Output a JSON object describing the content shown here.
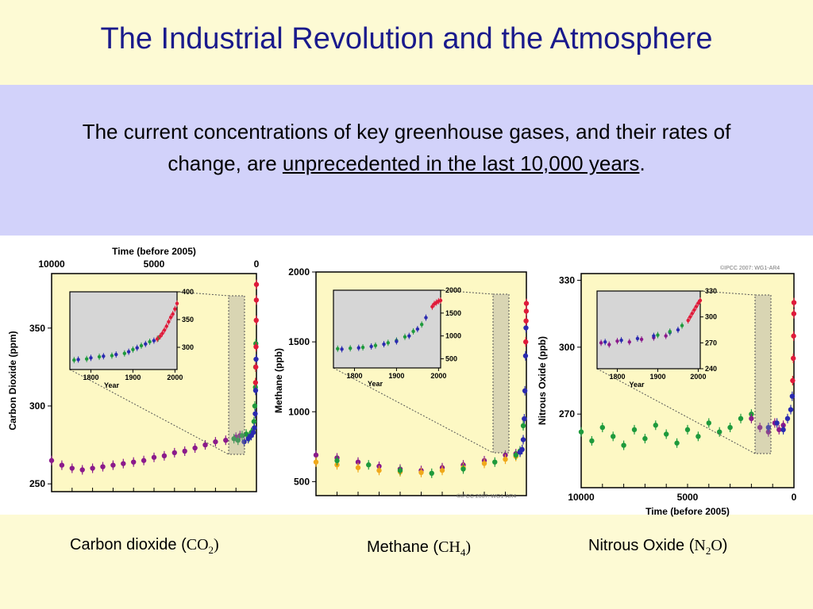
{
  "slide": {
    "title": "The Industrial Revolution and the Atmosphere",
    "subtitle_part1": "The current concentrations of key greenhouse gases, and their rates of change, are ",
    "subtitle_underlined": "unprecedented in the last 10,000 years",
    "subtitle_end": ".",
    "credit": "©IPCC 2007: WG1-AR4",
    "credit_partial": "©IPCC 2007: WG1-AR4"
  },
  "captions": [
    {
      "text": "Carbon dioxide (",
      "formula": "CO",
      "sub": "2",
      "close": ")"
    },
    {
      "text": "Methane (",
      "formula": "CH",
      "sub": "4",
      "close": ")"
    },
    {
      "text": "Nitrous Oxide (",
      "formula": "N",
      "sub": "2",
      "formula_tail": "O",
      "close": ")"
    }
  ],
  "colors": {
    "title": "#1a1a8c",
    "band": "#d2d2fa",
    "plot_bg": "#fdf8c4",
    "inset_bg": "#d6d6d6",
    "purple": "#8b1a8b",
    "green": "#1e9a3c",
    "blue": "#2a2ab0",
    "red": "#e01a3a",
    "orange": "#f0a81a"
  },
  "chart_data": [
    {
      "type": "scatter",
      "title": "",
      "xlabel": "Time (before 2005)",
      "ylabel": "Carbon Dioxide (ppm)",
      "xlim": [
        10000,
        0
      ],
      "ylim": [
        245,
        385
      ],
      "xticks": [
        "10000",
        "5000",
        "0"
      ],
      "yticks": [
        "250",
        "300",
        "350"
      ],
      "series": [
        {
          "color": "purple",
          "x": [
            10000,
            9500,
            9000,
            8500,
            8000,
            7500,
            7000,
            6500,
            6000,
            5500,
            5000,
            4500,
            4000,
            3500,
            3000,
            2500,
            2000,
            1500,
            1000,
            800
          ],
          "y": [
            265,
            262,
            260,
            259,
            260,
            261,
            262,
            263,
            264,
            265,
            267,
            268,
            270,
            271,
            273,
            275,
            277,
            278,
            280,
            281
          ]
        },
        {
          "color": "green",
          "x": [
            1100,
            900,
            700,
            500,
            350,
            250,
            180,
            120,
            80,
            50,
            40,
            30
          ],
          "y": [
            279,
            278,
            281,
            282,
            280,
            283,
            284,
            290,
            300,
            312,
            325,
            340
          ]
        },
        {
          "color": "blue",
          "x": [
            600,
            400,
            250,
            150,
            100,
            60,
            40,
            20
          ],
          "y": [
            277,
            279,
            281,
            283,
            286,
            295,
            310,
            330
          ]
        },
        {
          "color": "red",
          "x": [
            45,
            30,
            20,
            10,
            5,
            0
          ],
          "y": [
            315,
            325,
            338,
            355,
            368,
            378
          ]
        }
      ],
      "inset": {
        "xlabel": "Year",
        "xlim": [
          1750,
          2005
        ],
        "ylim": [
          260,
          400
        ],
        "xticks": [
          "1800",
          "1900",
          "2000"
        ],
        "yticks": [
          "300",
          "350",
          "400"
        ],
        "series": [
          {
            "color": "green",
            "x": [
              1760,
              1790,
              1820,
              1850,
              1880,
              1900,
              1920,
              1940,
              1960
            ],
            "y": [
              277,
              279,
              283,
              285,
              289,
              296,
              303,
              310,
              316
            ]
          },
          {
            "color": "blue",
            "x": [
              1770,
              1800,
              1830,
              1860,
              1890,
              1910,
              1930,
              1950
            ],
            "y": [
              278,
              281,
              284,
              287,
              292,
              299,
              306,
              312
            ]
          },
          {
            "color": "red",
            "x": [
              1958,
              1965,
              1970,
              1975,
              1980,
              1985,
              1990,
              1995,
              2000,
              2005
            ],
            "y": [
              315,
              320,
              325,
              331,
              338,
              346,
              354,
              360,
              369,
              379
            ]
          }
        ]
      }
    },
    {
      "type": "scatter",
      "title": "",
      "xlabel": "",
      "ylabel": "Methane (ppb)",
      "xlim": [
        10000,
        0
      ],
      "ylim": [
        400,
        2000
      ],
      "yticks": [
        "500",
        "1000",
        "1500",
        "2000"
      ],
      "series": [
        {
          "color": "purple",
          "x": [
            10000,
            9000,
            8000,
            7000,
            6000,
            5000,
            4000,
            3000,
            2000,
            1000,
            500
          ],
          "y": [
            690,
            670,
            640,
            610,
            590,
            580,
            600,
            620,
            650,
            690,
            700
          ]
        },
        {
          "color": "orange",
          "x": [
            10000,
            9000,
            8000,
            7000,
            6000,
            5000,
            4000,
            3000,
            2000,
            1000,
            500
          ],
          "y": [
            640,
            620,
            600,
            580,
            570,
            565,
            580,
            600,
            630,
            660,
            680
          ]
        },
        {
          "color": "green",
          "x": [
            9000,
            7500,
            6000,
            4500,
            3000,
            1500,
            500,
            300,
            150
          ],
          "y": [
            650,
            620,
            580,
            560,
            590,
            640,
            690,
            720,
            900
          ]
        },
        {
          "color": "blue",
          "x": [
            300,
            200,
            150,
            100,
            70,
            40,
            20
          ],
          "y": [
            710,
            730,
            800,
            950,
            1150,
            1400,
            1600
          ]
        },
        {
          "color": "red",
          "x": [
            30,
            15,
            5,
            0
          ],
          "y": [
            1500,
            1650,
            1720,
            1775
          ]
        }
      ],
      "inset": {
        "xlabel": "Year",
        "xlim": [
          1750,
          2005
        ],
        "ylim": [
          300,
          2000
        ],
        "xticks": [
          "1800",
          "1900",
          "2000"
        ],
        "yticks": [
          "500",
          "1000",
          "1500",
          "2000"
        ],
        "series": [
          {
            "color": "green",
            "x": [
              1760,
              1790,
              1820,
              1850,
              1880,
              1900,
              1920,
              1940,
              1960
            ],
            "y": [
              720,
              730,
              750,
              790,
              850,
              900,
              980,
              1100,
              1250
            ]
          },
          {
            "color": "blue",
            "x": [
              1770,
              1810,
              1840,
              1870,
              1900,
              1930,
              1950,
              1970
            ],
            "y": [
              710,
              740,
              770,
              820,
              880,
              1000,
              1150,
              1400
            ]
          },
          {
            "color": "red",
            "x": [
              1985,
              1990,
              1995,
              2000,
              2005
            ],
            "y": [
              1640,
              1700,
              1730,
              1760,
              1775
            ]
          }
        ]
      }
    },
    {
      "type": "scatter",
      "title": "",
      "xlabel": "Time (before 2005)",
      "ylabel": "Nitrous Oxide (ppb)",
      "xlim": [
        10000,
        0
      ],
      "ylim": [
        237,
        333
      ],
      "xticks": [
        "10000",
        "5000",
        "0"
      ],
      "yticks": [
        "270",
        "300",
        "330"
      ],
      "series": [
        {
          "color": "green",
          "x": [
            10000,
            9500,
            9000,
            8500,
            8000,
            7500,
            7000,
            6500,
            6000,
            5500,
            5000,
            4500,
            4000,
            3500,
            3000,
            2500,
            2000
          ],
          "y": [
            262,
            258,
            264,
            260,
            256,
            263,
            259,
            265,
            261,
            257,
            263,
            260,
            266,
            262,
            264,
            268,
            270
          ]
        },
        {
          "color": "purple",
          "x": [
            2000,
            1600,
            1200,
            900,
            700,
            500
          ],
          "y": [
            268,
            264,
            262,
            266,
            263,
            265
          ]
        },
        {
          "color": "blue",
          "x": [
            1200,
            800,
            500,
            300,
            150,
            80
          ],
          "y": [
            264,
            266,
            263,
            268,
            272,
            278
          ]
        },
        {
          "color": "red",
          "x": [
            60,
            30,
            15,
            5,
            0
          ],
          "y": [
            285,
            295,
            305,
            315,
            320
          ]
        }
      ],
      "inset": {
        "xlabel": "Year",
        "xlim": [
          1750,
          2005
        ],
        "ylim": [
          240,
          330
        ],
        "xticks": [
          "1800",
          "1900",
          "2000"
        ],
        "yticks": [
          "240",
          "270",
          "300",
          "330"
        ],
        "series": [
          {
            "color": "purple",
            "x": [
              1760,
              1780,
              1800,
              1830,
              1860,
              1890,
              1920
            ],
            "y": [
              270,
              268,
              272,
              271,
              274,
              276,
              278
            ]
          },
          {
            "color": "blue",
            "x": [
              1770,
              1810,
              1850,
              1890,
              1930,
              1950
            ],
            "y": [
              271,
              273,
              275,
              278,
              282,
              285
            ]
          },
          {
            "color": "green",
            "x": [
              1900,
              1930,
              1960
            ],
            "y": [
              279,
              283,
              290
            ]
          },
          {
            "color": "red",
            "x": [
              1975,
              1980,
              1985,
              1990,
              1995,
              2000,
              2005
            ],
            "y": [
              296,
              300,
              304,
              308,
              312,
              316,
              319
            ]
          }
        ]
      }
    }
  ]
}
